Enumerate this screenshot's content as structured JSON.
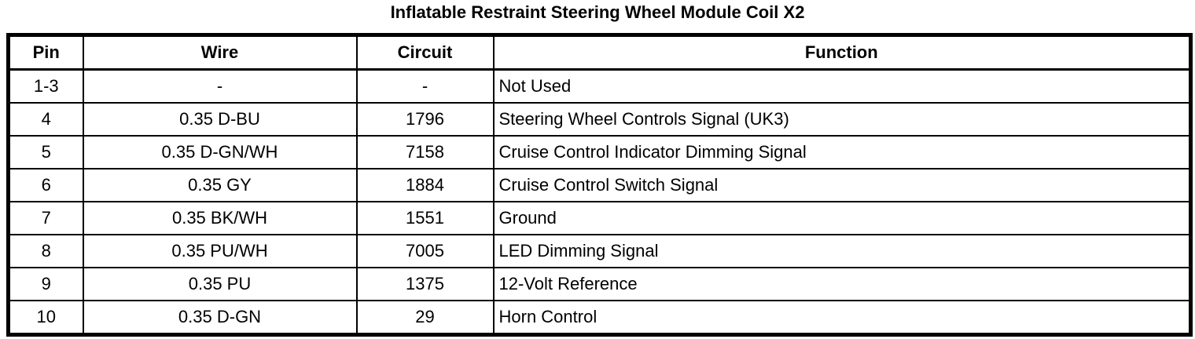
{
  "title": "Inflatable Restraint Steering Wheel Module Coil X2",
  "table": {
    "columns": [
      "Pin",
      "Wire",
      "Circuit",
      "Function"
    ],
    "rows": [
      {
        "pin": "1-3",
        "wire": "-",
        "circuit": "-",
        "function": "Not Used"
      },
      {
        "pin": "4",
        "wire": "0.35 D-BU",
        "circuit": "1796",
        "function": "Steering Wheel Controls Signal (UK3)"
      },
      {
        "pin": "5",
        "wire": "0.35 D-GN/WH",
        "circuit": "7158",
        "function": "Cruise Control Indicator Dimming Signal"
      },
      {
        "pin": "6",
        "wire": "0.35 GY",
        "circuit": "1884",
        "function": "Cruise Control Switch Signal"
      },
      {
        "pin": "7",
        "wire": "0.35 BK/WH",
        "circuit": "1551",
        "function": "Ground"
      },
      {
        "pin": "8",
        "wire": "0.35 PU/WH",
        "circuit": "7005",
        "function": "LED Dimming Signal"
      },
      {
        "pin": "9",
        "wire": "0.35 PU",
        "circuit": "1375",
        "function": "12-Volt Reference"
      },
      {
        "pin": "10",
        "wire": "0.35 D-GN",
        "circuit": "29",
        "function": "Horn Control"
      }
    ]
  },
  "colors": {
    "background": "#ffffff",
    "text": "#000000",
    "border": "#000000"
  }
}
